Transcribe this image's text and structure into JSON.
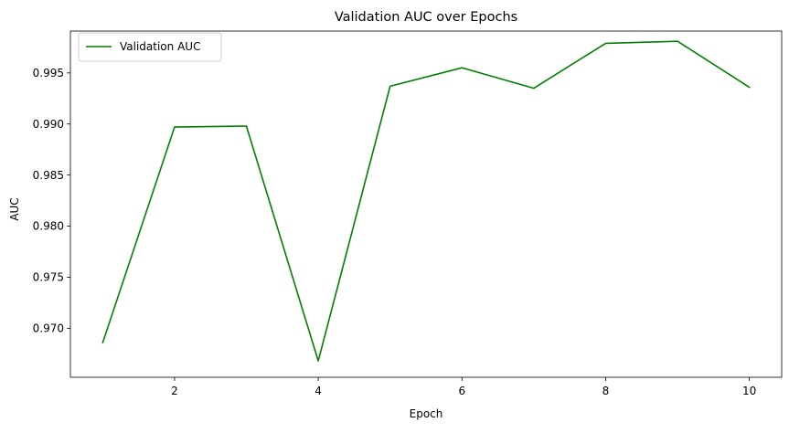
{
  "colors": {
    "series_line": "#008000",
    "axes": "#000000",
    "background": "#ffffff",
    "legend_border": "#cccccc"
  },
  "chart_data": {
    "type": "line",
    "title": "Validation AUC over Epochs",
    "xlabel": "Epoch",
    "ylabel": "AUC",
    "x": [
      1,
      2,
      3,
      4,
      5,
      6,
      7,
      8,
      9,
      10
    ],
    "series": [
      {
        "name": "Validation AUC",
        "values": [
          0.9686,
          0.9897,
          0.9898,
          0.9668,
          0.9937,
          0.9955,
          0.9935,
          0.9979,
          0.9981,
          0.9936
        ],
        "color": "#008000"
      }
    ],
    "xlim": [
      0.55,
      10.45
    ],
    "ylim": [
      0.9652,
      0.9991
    ],
    "xticks": [
      2,
      4,
      6,
      8,
      10
    ],
    "xtick_labels": [
      "2",
      "4",
      "6",
      "8",
      "10"
    ],
    "yticks": [
      0.97,
      0.975,
      0.98,
      0.985,
      0.99,
      0.995
    ],
    "ytick_labels": [
      "0.970",
      "0.975",
      "0.980",
      "0.985",
      "0.990",
      "0.995"
    ],
    "grid": false,
    "legend_position": "top-left"
  }
}
